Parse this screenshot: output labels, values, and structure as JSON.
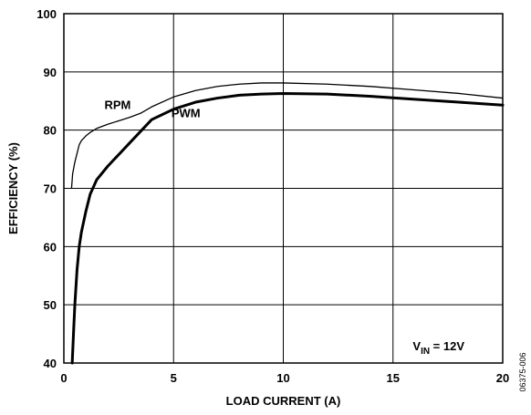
{
  "chart_data": {
    "type": "line",
    "title": "",
    "xlabel": "LOAD CURRENT (A)",
    "ylabel": "EFFICIENCY (%)",
    "xlim": [
      0,
      20
    ],
    "ylim": [
      40,
      100
    ],
    "xticks": [
      0,
      5,
      10,
      15,
      20
    ],
    "yticks": [
      40,
      50,
      60,
      70,
      80,
      90,
      100
    ],
    "grid": true,
    "annotation": {
      "prefix": "V",
      "subscript": "IN",
      "suffix": " = 12V"
    },
    "figure_id": "06375-006",
    "series": [
      {
        "name": "RPM",
        "stroke_width": "thin",
        "x": [
          0.35,
          0.4,
          0.5,
          0.6,
          0.7,
          0.8,
          1.0,
          1.2,
          1.5,
          2.0,
          2.5,
          3.0,
          3.5,
          4.0,
          5.0,
          6.0,
          7.0,
          8.0,
          9.0,
          10.0,
          12.0,
          14.0,
          16.0,
          18.0,
          20.0
        ],
        "y": [
          70.0,
          72.5,
          74.5,
          76.0,
          77.5,
          78.2,
          79.0,
          79.6,
          80.3,
          81.0,
          81.6,
          82.2,
          82.9,
          84.0,
          85.7,
          86.8,
          87.5,
          87.9,
          88.1,
          88.1,
          87.9,
          87.5,
          86.9,
          86.3,
          85.5
        ]
      },
      {
        "name": "PWM",
        "stroke_width": "thick",
        "x": [
          0.38,
          0.45,
          0.5,
          0.6,
          0.7,
          0.8,
          1.0,
          1.2,
          1.5,
          2.0,
          2.5,
          3.0,
          3.5,
          4.0,
          5.0,
          6.0,
          7.0,
          8.0,
          9.0,
          10.0,
          12.0,
          14.0,
          16.0,
          18.0,
          20.0
        ],
        "y": [
          40.0,
          46.0,
          50.0,
          56.0,
          60.0,
          62.5,
          66.0,
          69.0,
          71.5,
          73.8,
          75.8,
          77.8,
          79.8,
          81.8,
          83.6,
          84.8,
          85.5,
          86.0,
          86.2,
          86.3,
          86.2,
          85.8,
          85.3,
          84.8,
          84.3
        ]
      }
    ]
  }
}
